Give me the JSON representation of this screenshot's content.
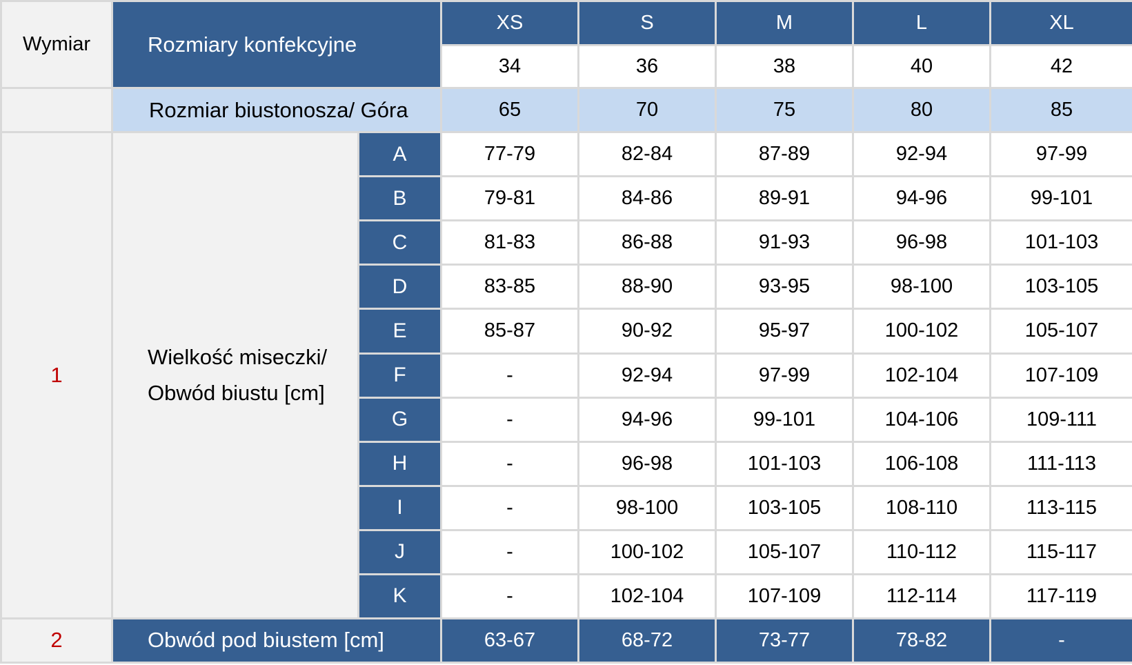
{
  "header": {
    "dimension_label": "Wymiar",
    "clothing_sizes_label": "Rozmiary konfekcyjne",
    "bra_size_label": "Rozmiar biustonosza/ Góra",
    "sizes": [
      "XS",
      "S",
      "M",
      "L",
      "XL"
    ],
    "eu_sizes": [
      "34",
      "36",
      "38",
      "40",
      "42"
    ],
    "band_sizes": [
      "65",
      "70",
      "75",
      "80",
      "85"
    ]
  },
  "cup_section": {
    "number": "1",
    "label_line1": "Wielkość miseczki/",
    "label_line2": "Obwód biustu [cm]",
    "rows": [
      {
        "cup": "A",
        "values": [
          "77-79",
          "82-84",
          "87-89",
          "92-94",
          "97-99"
        ]
      },
      {
        "cup": "B",
        "values": [
          "79-81",
          "84-86",
          "89-91",
          "94-96",
          "99-101"
        ]
      },
      {
        "cup": "C",
        "values": [
          "81-83",
          "86-88",
          "91-93",
          "96-98",
          "101-103"
        ]
      },
      {
        "cup": "D",
        "values": [
          "83-85",
          "88-90",
          "93-95",
          "98-100",
          "103-105"
        ]
      },
      {
        "cup": "E",
        "values": [
          "85-87",
          "90-92",
          "95-97",
          "100-102",
          "105-107"
        ]
      },
      {
        "cup": "F",
        "values": [
          "-",
          "92-94",
          "97-99",
          "102-104",
          "107-109"
        ]
      },
      {
        "cup": "G",
        "values": [
          "-",
          "94-96",
          "99-101",
          "104-106",
          "109-111"
        ]
      },
      {
        "cup": "H",
        "values": [
          "-",
          "96-98",
          "101-103",
          "106-108",
          "111-113"
        ]
      },
      {
        "cup": "I",
        "values": [
          "-",
          "98-100",
          "103-105",
          "108-110",
          "113-115"
        ]
      },
      {
        "cup": "J",
        "values": [
          "-",
          "100-102",
          "105-107",
          "110-112",
          "115-117"
        ]
      },
      {
        "cup": "K",
        "values": [
          "-",
          "102-104",
          "107-109",
          "112-114",
          "117-119"
        ]
      }
    ]
  },
  "underbust": {
    "number": "2",
    "label": "Obwód pod biustem [cm]",
    "values": [
      "63-67",
      "68-72",
      "73-77",
      "78-82",
      "-"
    ]
  },
  "colors": {
    "header_blue": "#365f91",
    "light_blue": "#c5d9f1",
    "gray_bg": "#f2f2f2",
    "number_red": "#c00000",
    "border": "#d9d9d9"
  }
}
